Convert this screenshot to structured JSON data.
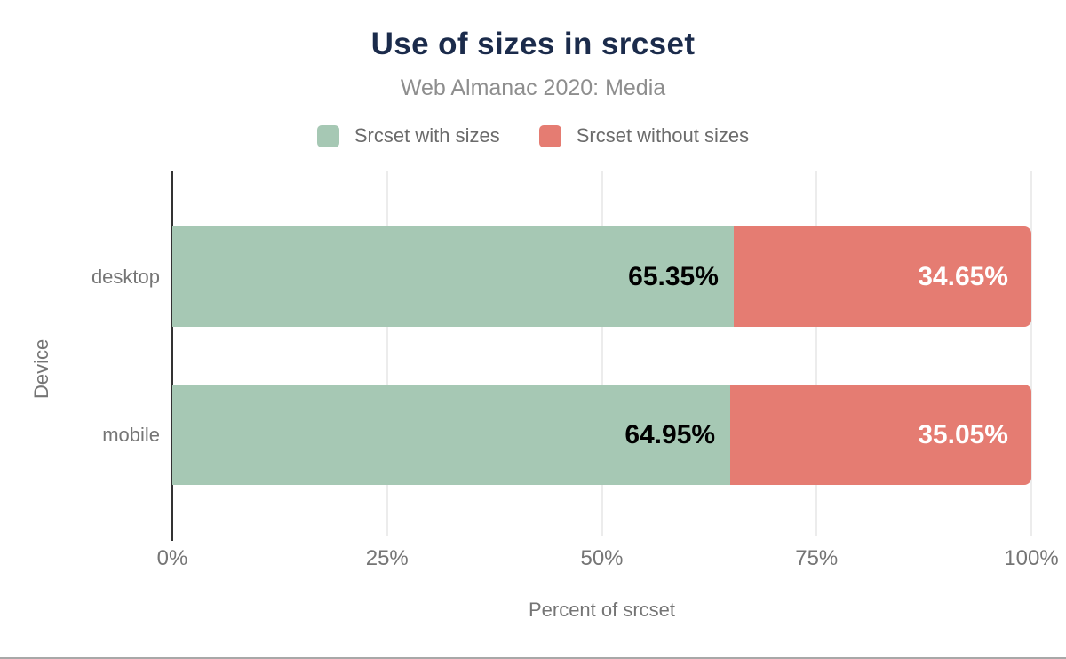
{
  "chart_data": {
    "type": "bar",
    "orientation": "horizontal",
    "stacked": true,
    "title": "Use of sizes in srcset",
    "subtitle": "Web Almanac 2020: Media",
    "xlabel": "Percent of srcset",
    "ylabel": "Device",
    "categories": [
      "desktop",
      "mobile"
    ],
    "series": [
      {
        "name": "Srcset with sizes",
        "color": "#a6c8b4",
        "label_color": "#000000",
        "values": [
          65.35,
          64.95
        ],
        "labels": [
          "65.35%",
          "64.95%"
        ]
      },
      {
        "name": "Srcset without sizes",
        "color": "#e57c72",
        "label_color": "#ffffff",
        "values": [
          34.65,
          35.05
        ],
        "labels": [
          "34.65%",
          "35.05%"
        ]
      }
    ],
    "xlim": [
      0,
      100
    ],
    "x_ticks": [
      {
        "value": 0,
        "label": "0%"
      },
      {
        "value": 25,
        "label": "25%"
      },
      {
        "value": 50,
        "label": "50%"
      },
      {
        "value": 75,
        "label": "75%"
      },
      {
        "value": 100,
        "label": "100%"
      }
    ],
    "grid": "vertical",
    "legend_position": "top",
    "style": {
      "background": "#ffffff",
      "title_color": "#1b2b4b",
      "subtitle_color": "#8e8e8e",
      "legend_text_color": "#6b6b6b",
      "axis_line_color": "#333333",
      "grid_color": "#ececec",
      "tick_label_color": "#757575",
      "axis_title_color": "#757575",
      "category_label_color": "#757575",
      "bottom_rule_color": "#a8a8a8"
    }
  }
}
